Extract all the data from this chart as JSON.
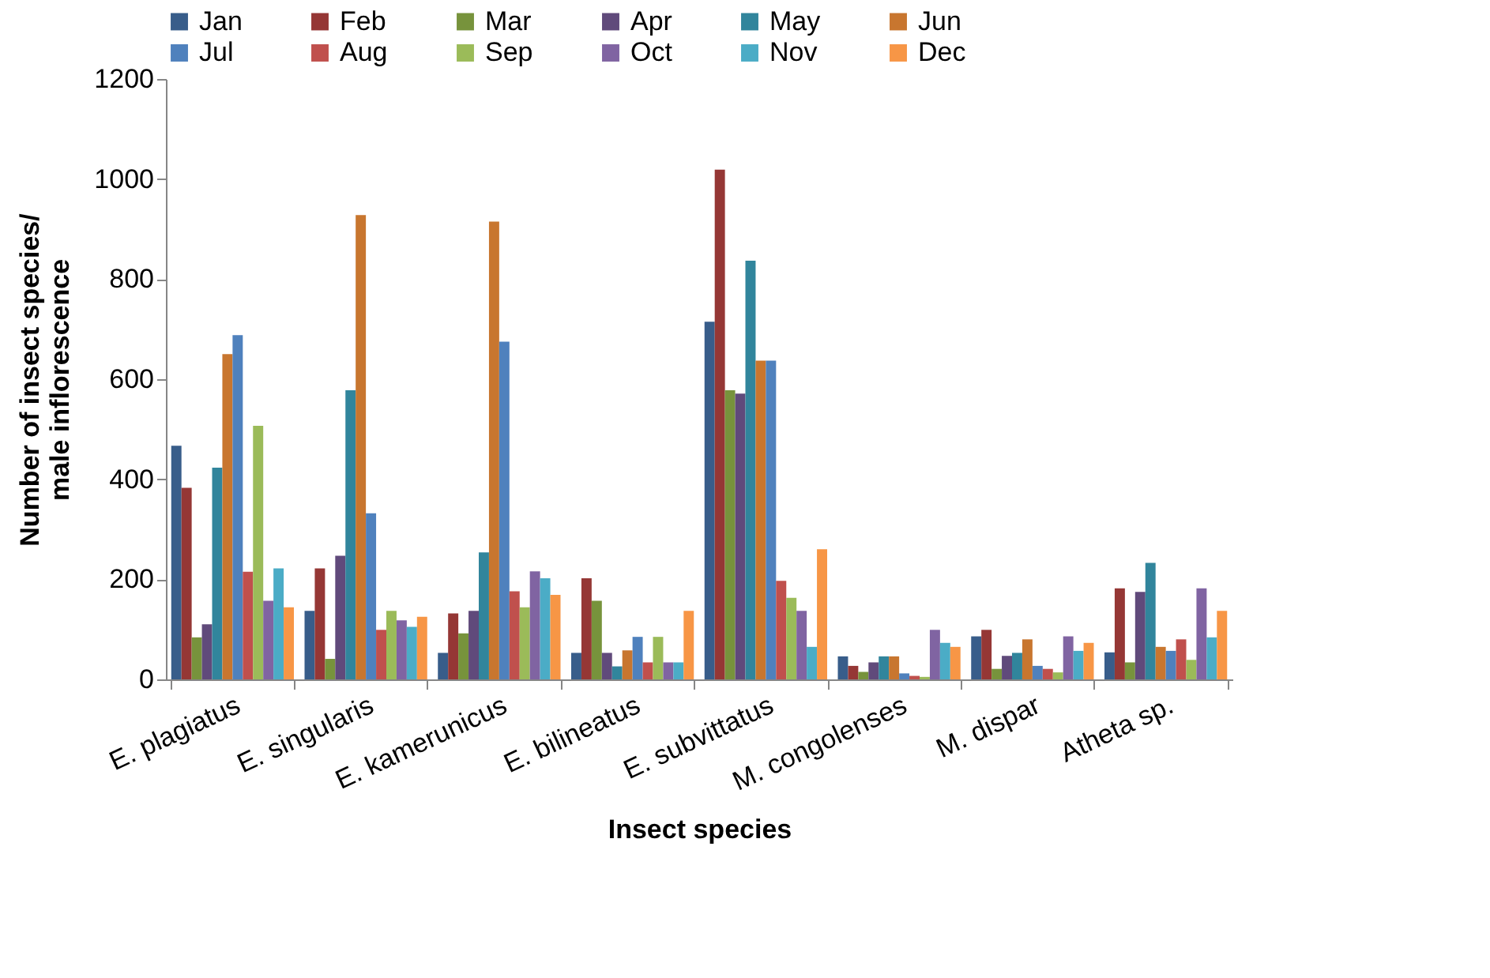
{
  "chart_data": {
    "type": "bar",
    "xlabel": "Insect species",
    "ylabel": "Number of insect species/\nmale inflorescence",
    "categories": [
      "E. plagiatus",
      "E. singularis",
      "E. kamerunicus",
      "E. bilineatus",
      "E. subvittatus",
      "M. congolenses",
      "M. dispar",
      "Atheta sp."
    ],
    "series": [
      {
        "name": "Jan",
        "color": "#385d8a",
        "values": [
          467,
          137,
          53,
          53,
          715,
          46,
          86,
          54
        ]
      },
      {
        "name": "Feb",
        "color": "#953735",
        "values": [
          383,
          222,
          132,
          202,
          1019,
          27,
          99,
          182
        ]
      },
      {
        "name": "Mar",
        "color": "#77933c",
        "values": [
          84,
          41,
          92,
          157,
          578,
          15,
          21,
          34
        ]
      },
      {
        "name": "Apr",
        "color": "#604a7b",
        "values": [
          110,
          247,
          137,
          53,
          571,
          34,
          47,
          175
        ]
      },
      {
        "name": "May",
        "color": "#31859c",
        "values": [
          423,
          578,
          254,
          26,
          837,
          46,
          53,
          233
        ]
      },
      {
        "name": "Jun",
        "color": "#c8762f",
        "values": [
          650,
          928,
          915,
          58,
          637,
          46,
          80,
          65
        ]
      },
      {
        "name": "Jul",
        "color": "#4f81bd",
        "values": [
          688,
          332,
          675,
          85,
          637,
          12,
          27,
          57
        ]
      },
      {
        "name": "Aug",
        "color": "#c0504d",
        "values": [
          215,
          99,
          176,
          34,
          197,
          7,
          21,
          80
        ]
      },
      {
        "name": "Sep",
        "color": "#9bbb59",
        "values": [
          507,
          137,
          144,
          85,
          163,
          5,
          14,
          39
        ]
      },
      {
        "name": "Oct",
        "color": "#8064a2",
        "values": [
          157,
          118,
          216,
          34,
          137,
          99,
          86,
          182
        ]
      },
      {
        "name": "Nov",
        "color": "#4bacc6",
        "values": [
          222,
          105,
          202,
          34,
          65,
          73,
          57,
          84
        ]
      },
      {
        "name": "Dec",
        "color": "#f79646",
        "values": [
          144,
          125,
          169,
          137,
          260,
          65,
          73,
          137
        ]
      }
    ],
    "ylim": [
      0,
      1200
    ],
    "yticks": [
      0,
      200,
      400,
      600,
      800,
      1000,
      1200
    ],
    "grid": false,
    "legend": "top"
  }
}
